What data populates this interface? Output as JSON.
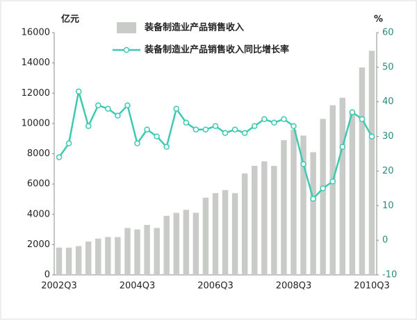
{
  "chart_data": {
    "type": "bar_line",
    "y_label": "亿元",
    "y2_label": "%",
    "categories": [
      "2002Q3",
      null,
      null,
      null,
      null,
      null,
      null,
      null,
      "2004Q3",
      null,
      null,
      null,
      null,
      null,
      null,
      null,
      "2006Q3",
      null,
      null,
      null,
      null,
      null,
      null,
      null,
      "2008Q3",
      null,
      null,
      null,
      null,
      null,
      null,
      null,
      "2010Q3"
    ],
    "series": [
      {
        "name": "装备制造业产品销售收入",
        "type": "bar",
        "color": "#c9cbc9",
        "values": [
          1800,
          1800,
          1900,
          2200,
          2400,
          2500,
          2500,
          3100,
          3000,
          3300,
          3100,
          3900,
          4100,
          4300,
          4100,
          5100,
          5400,
          5600,
          5400,
          6700,
          7200,
          7500,
          7200,
          8900,
          9600,
          9200,
          8100,
          10300,
          11200,
          11700,
          10800,
          13700,
          14800
        ]
      },
      {
        "name": "装备制造业产品销售收入同比增长率",
        "type": "line",
        "axis": "y2",
        "color": "#3cc9b0",
        "values": [
          24,
          28,
          43,
          33,
          39,
          38,
          36,
          39,
          28,
          32,
          30,
          27,
          38,
          34,
          32,
          32,
          33,
          31,
          32,
          31,
          33,
          35,
          34,
          35,
          33,
          22,
          12,
          15,
          17,
          27,
          37,
          35,
          30
        ]
      }
    ],
    "ylim": [
      0,
      16000
    ],
    "yticks": [
      0,
      2000,
      4000,
      6000,
      8000,
      10000,
      12000,
      14000,
      16000
    ],
    "y2lim": [
      -10,
      60
    ],
    "y2ticks": [
      -10,
      0,
      10,
      20,
      30,
      40,
      50,
      60
    ]
  }
}
